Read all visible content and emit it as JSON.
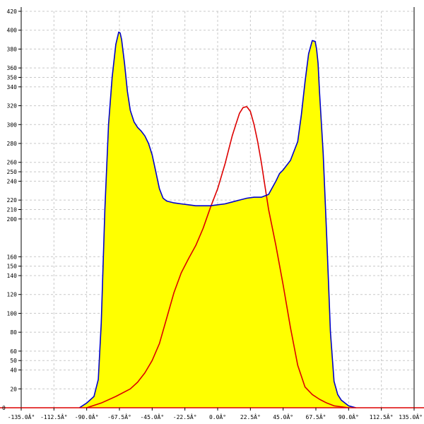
{
  "chart_data": {
    "type": "area",
    "title": "",
    "xlabel": "",
    "ylabel": "",
    "xlim": [
      -135,
      135
    ],
    "ylim": [
      0,
      420
    ],
    "grid": true,
    "x_ticks": [
      -135,
      -112.5,
      -90,
      -67.5,
      -45,
      -22.5,
      0,
      22.5,
      45,
      67.5,
      90,
      112.5,
      135
    ],
    "x_tick_labels": [
      "-135.0Â°",
      "-112.5Â°",
      "-90.0Â°",
      "-67.5Â°",
      "-45.0Â°",
      "-22.5Â°",
      "0.0Â°",
      "22.5Â°",
      "45.0Â°",
      "67.5Â°",
      "90.0Â°",
      "112.5Â°",
      "135.0Â°"
    ],
    "y_ticks": [
      20,
      40,
      50,
      60,
      80,
      100,
      120,
      140,
      150,
      160,
      200,
      210,
      220,
      240,
      250,
      260,
      280,
      300,
      320,
      340,
      350,
      360,
      380,
      400,
      420
    ],
    "y_tick_labels": [
      "20",
      "40",
      "50",
      "60",
      "80",
      "100",
      "120",
      "140",
      "150",
      "160",
      "200",
      "210",
      "220",
      "240",
      "250",
      "260",
      "280",
      "300",
      "320",
      "340",
      "350",
      "360",
      "380",
      "400",
      "420"
    ],
    "colors": {
      "fill": "#ffff00",
      "blue_line": "#0000cc",
      "red_line": "#dd0000",
      "axis": "#dd0000",
      "grid": "#c8c8c8"
    },
    "series": [
      {
        "x": [
          -95,
          -90,
          -85,
          -82,
          -80,
          -77.5,
          -75,
          -72.5,
          -70,
          -68,
          -67,
          -66,
          -64,
          -62,
          -60,
          -57.5,
          -55,
          -52.5,
          -50,
          -47.5,
          -45,
          -42.5,
          -40,
          -37.5,
          -35,
          -30,
          -25,
          -20,
          -15,
          -10,
          -5,
          0,
          5,
          10,
          15,
          20,
          25,
          30,
          35,
          40,
          42.5,
          45,
          50,
          55,
          57.5,
          60,
          62.5,
          65,
          67,
          68,
          69,
          70,
          72.5,
          75,
          77.5,
          80,
          82.5,
          85,
          90,
          95
        ],
        "values": [
          0,
          5,
          12,
          30,
          90,
          210,
          300,
          350,
          385,
          398,
          397,
          390,
          365,
          335,
          315,
          303,
          297,
          293,
          288,
          280,
          268,
          250,
          232,
          222,
          219,
          217,
          216,
          215,
          214,
          214,
          214,
          215,
          216,
          218,
          220,
          222,
          223,
          223,
          226,
          240,
          248,
          252,
          262,
          282,
          310,
          345,
          375,
          389,
          388,
          380,
          365,
          335,
          270,
          180,
          80,
          28,
          14,
          8,
          2,
          0
        ]
      },
      {
        "x": [
          -90,
          -80,
          -70,
          -60,
          -55,
          -50,
          -45,
          -40,
          -35,
          -30,
          -25,
          -20,
          -15,
          -10,
          -5,
          0,
          5,
          10,
          12.5,
          15,
          17.5,
          20,
          22.5,
          25,
          27.5,
          30,
          32.5,
          35,
          40,
          45,
          50,
          55,
          60,
          65,
          70,
          75,
          80,
          90
        ],
        "values": [
          0,
          5,
          12,
          20,
          27,
          37,
          50,
          68,
          95,
          122,
          143,
          158,
          172,
          190,
          212,
          232,
          258,
          288,
          300,
          312,
          318,
          319,
          314,
          300,
          282,
          260,
          235,
          210,
          172,
          130,
          85,
          45,
          22,
          14,
          9,
          5,
          2,
          0
        ]
      }
    ]
  }
}
